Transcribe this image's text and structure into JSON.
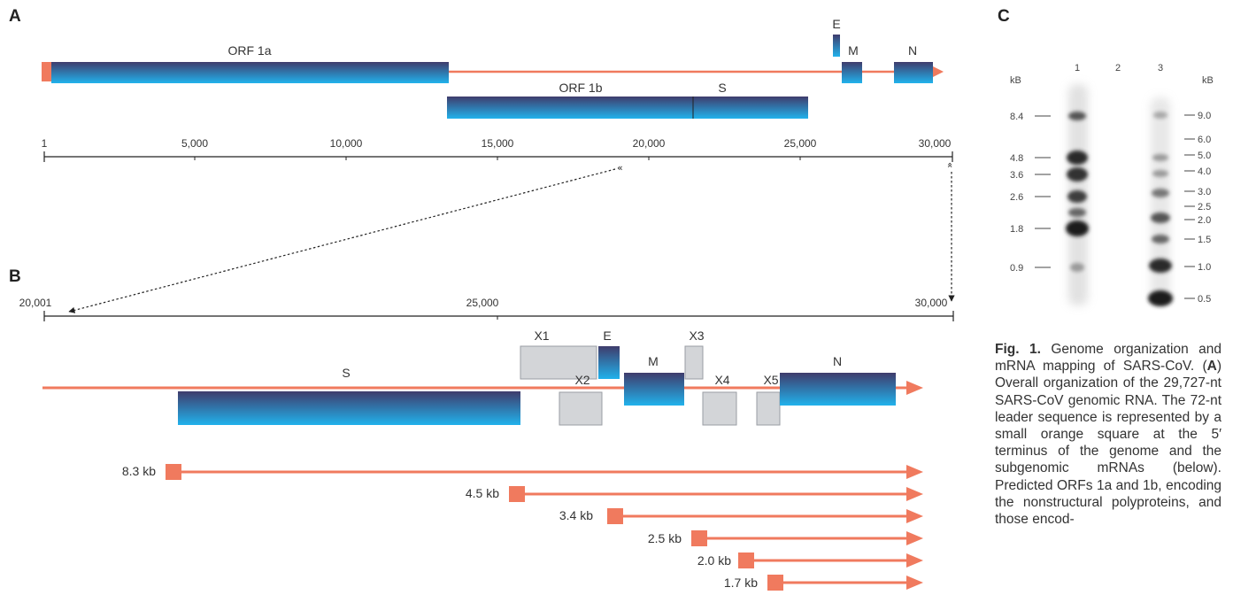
{
  "panels": {
    "a": "A",
    "b": "B",
    "c": "C"
  },
  "panel_a": {
    "genes": {
      "orf1a": "ORF 1a",
      "orf1b": "ORF 1b",
      "s": "S",
      "e": "E",
      "m": "M",
      "n": "N"
    },
    "axis_ticks": [
      "1",
      "5,000",
      "10,000",
      "15,000",
      "20,000",
      "25,000",
      "30,000"
    ]
  },
  "panel_b": {
    "axis_ticks": [
      "20,001",
      "25,000",
      "30,000"
    ],
    "genes": {
      "s": "S",
      "x1": "X1",
      "e": "E",
      "m": "M",
      "x2": "X2",
      "x3": "X3",
      "x4": "X4",
      "x5": "X5",
      "n": "N"
    },
    "mrnas": [
      "8.3 kb",
      "4.5 kb",
      "3.4 kb",
      "2.5 kb",
      "2.0 kb",
      "1.7 kb"
    ]
  },
  "panel_c": {
    "left_unit": "kB",
    "right_unit": "kB",
    "lanes": [
      "1",
      "2",
      "3"
    ],
    "left_markers": [
      "8.4",
      "4.8",
      "3.6",
      "2.6",
      "1.8",
      "0.9"
    ],
    "right_markers": [
      "9.0",
      "6.0",
      "5.0",
      "4.0",
      "3.0",
      "2.5",
      "2.0",
      "1.5",
      "1.0",
      "0.5"
    ]
  },
  "caption": {
    "fig_label": "Fig. 1.",
    "text_1": " Genome organization and mRNA mapping of SARS-CoV. (",
    "bold_a": "A",
    "text_2": ") Overall organization of the 29,727-nt SARS-CoV genomic RNA. The 72-nt leader sequence is represented by a small orange square at the 5′ terminus of the genome and the subgenomic mRNAs (below). Predicted ORFs 1a and 1b, encoding the nonstructural polyproteins, and those encod-"
  },
  "colors": {
    "orange": "#F07A5E",
    "gene_dark": "#3F3C6C",
    "gene_light": "#21B2EC",
    "accessory": "#D3D5D8"
  }
}
